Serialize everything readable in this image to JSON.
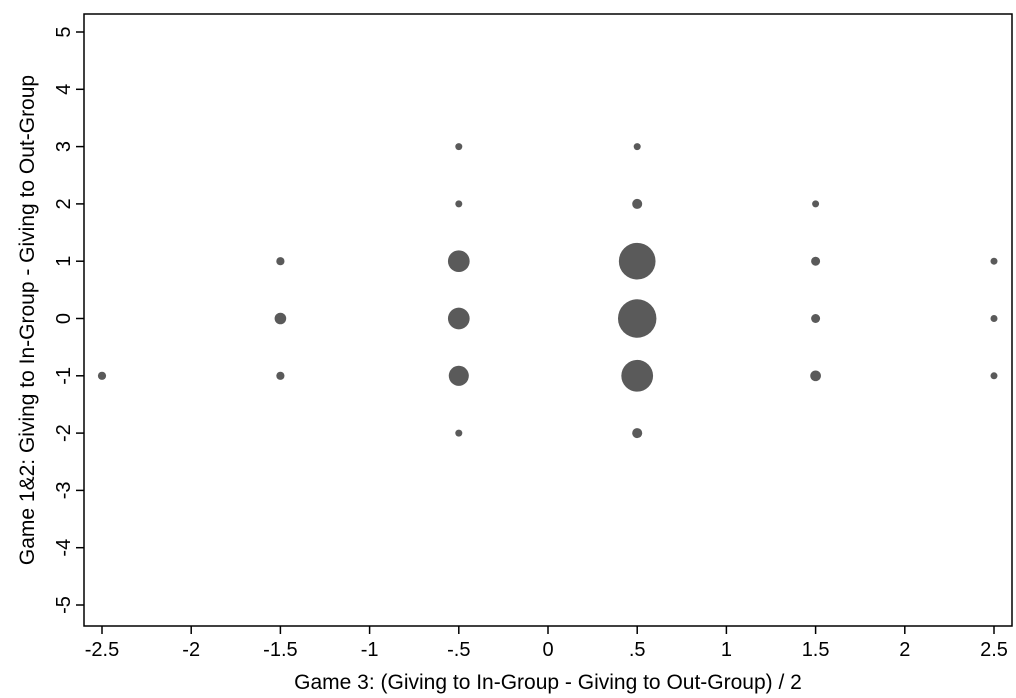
{
  "chart_data": {
    "type": "scatter",
    "title": "",
    "xlabel": "Game 3: (Giving to In-Group - Giving to Out-Group) / 2",
    "ylabel": "Game 1&2: Giving to In-Group - Giving to Out-Group",
    "xlim": [
      -2.5,
      2.5
    ],
    "ylim": [
      -5,
      5
    ],
    "xticks": [
      {
        "value": -2.5,
        "label": "-2.5"
      },
      {
        "value": -2,
        "label": "-2"
      },
      {
        "value": -1.5,
        "label": "-1.5"
      },
      {
        "value": -1,
        "label": "-1"
      },
      {
        "value": -0.5,
        "label": "-.5"
      },
      {
        "value": 0,
        "label": "0"
      },
      {
        "value": 0.5,
        "label": ".5"
      },
      {
        "value": 1,
        "label": "1"
      },
      {
        "value": 1.5,
        "label": "1.5"
      },
      {
        "value": 2,
        "label": "2"
      },
      {
        "value": 2.5,
        "label": "2.5"
      }
    ],
    "yticks": [
      {
        "value": -5,
        "label": "-5"
      },
      {
        "value": -4,
        "label": "-4"
      },
      {
        "value": -3,
        "label": "-3"
      },
      {
        "value": -2,
        "label": "-2"
      },
      {
        "value": -1,
        "label": "-1"
      },
      {
        "value": 0,
        "label": "0"
      },
      {
        "value": 1,
        "label": "1"
      },
      {
        "value": 2,
        "label": "2"
      },
      {
        "value": 3,
        "label": "3"
      },
      {
        "value": 4,
        "label": "4"
      },
      {
        "value": 5,
        "label": "5"
      }
    ],
    "grid": false,
    "marker_color": "#5a5a5a",
    "points": [
      {
        "x": -2.5,
        "y": -1,
        "weight": 1
      },
      {
        "x": -1.5,
        "y": 1,
        "weight": 1
      },
      {
        "x": -1.5,
        "y": 0,
        "weight": 2
      },
      {
        "x": -1.5,
        "y": -1,
        "weight": 1
      },
      {
        "x": -0.5,
        "y": 3,
        "weight": 0.5
      },
      {
        "x": -0.5,
        "y": 2,
        "weight": 0.5
      },
      {
        "x": -0.5,
        "y": 1,
        "weight": 7
      },
      {
        "x": -0.5,
        "y": 0,
        "weight": 7
      },
      {
        "x": -0.5,
        "y": -1,
        "weight": 6
      },
      {
        "x": -0.5,
        "y": -2,
        "weight": 0.5
      },
      {
        "x": 0.5,
        "y": 3,
        "weight": 0.5
      },
      {
        "x": 0.5,
        "y": 2,
        "weight": 1.5
      },
      {
        "x": 0.5,
        "y": 1,
        "weight": 20
      },
      {
        "x": 0.5,
        "y": 0,
        "weight": 22
      },
      {
        "x": 0.5,
        "y": -1,
        "weight": 15
      },
      {
        "x": 0.5,
        "y": -2,
        "weight": 1.5
      },
      {
        "x": 1.5,
        "y": 2,
        "weight": 0.5
      },
      {
        "x": 1.5,
        "y": 1,
        "weight": 1.2
      },
      {
        "x": 1.5,
        "y": 0,
        "weight": 1.2
      },
      {
        "x": 1.5,
        "y": -1,
        "weight": 1.7
      },
      {
        "x": 2.5,
        "y": 1,
        "weight": 0.5
      },
      {
        "x": 2.5,
        "y": 0,
        "weight": 0.5
      },
      {
        "x": 2.5,
        "y": -1,
        "weight": 0.5
      }
    ]
  }
}
